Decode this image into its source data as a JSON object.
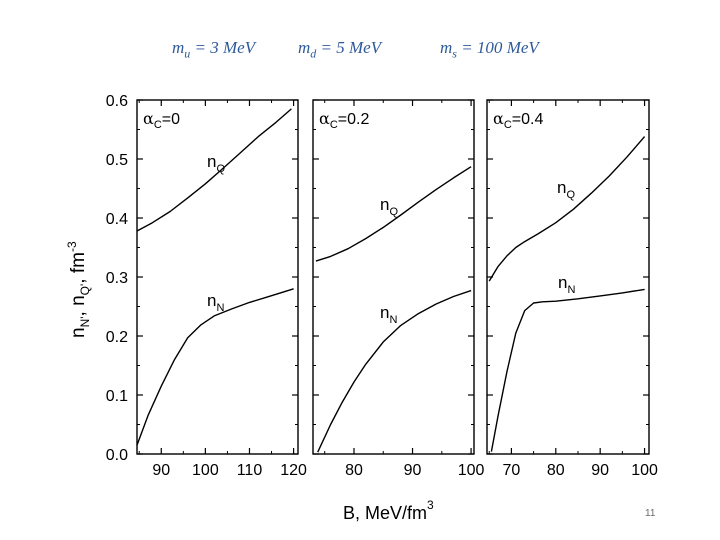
{
  "header": {
    "mu": {
      "sym": "m",
      "sub": "u",
      "rel": " = 3 ",
      "unit": "MeV"
    },
    "md": {
      "sym": "m",
      "sub": "d",
      "rel": " = 5 ",
      "unit": "MeV"
    },
    "ms": {
      "sym": "m",
      "sub": "s",
      "rel": " = 100 ",
      "unit": "MeV"
    }
  },
  "slide_number": "11",
  "chart_data": {
    "type": "line",
    "ylabel": {
      "n1": "n",
      "n1_sub": "N'",
      "n2": " n",
      "n2_sub": "Q'",
      "unit": "fm",
      "unit_sup": "-3"
    },
    "xlabel": {
      "text": "B,  MeV/fm",
      "sup": "3"
    },
    "ylim": [
      0.0,
      0.6
    ],
    "yticks": [
      "0.0",
      "0.1",
      "0.2",
      "0.3",
      "0.4",
      "0.5",
      "0.6"
    ],
    "ytick_values": [
      0.0,
      0.1,
      0.2,
      0.3,
      0.4,
      0.5,
      0.6
    ],
    "panels": [
      {
        "alpha_label": {
          "a": "α",
          "sub": "C",
          "rest": "=0"
        },
        "xlim": [
          84.5,
          121
        ],
        "xticks": [
          90,
          100,
          110,
          120
        ],
        "series": [
          {
            "name": "nQ",
            "label": {
              "main": "n",
              "sub": "Q"
            },
            "x": [
              84.5,
              88,
              92,
              96,
              100,
              104,
              108,
              112,
              116,
              119.5
            ],
            "y": [
              0.378,
              0.392,
              0.411,
              0.434,
              0.458,
              0.484,
              0.511,
              0.538,
              0.562,
              0.585
            ]
          },
          {
            "name": "nN",
            "label": {
              "main": "n",
              "sub": "N"
            },
            "x": [
              84.5,
              87,
              90,
              93,
              96,
              99,
              102,
              106,
              110,
              114,
              117,
              120
            ],
            "y": [
              0.015,
              0.065,
              0.115,
              0.16,
              0.197,
              0.219,
              0.234,
              0.246,
              0.257,
              0.266,
              0.273,
              0.28
            ]
          }
        ]
      },
      {
        "alpha_label": {
          "a": "α",
          "sub": "C",
          "rest": "=0.2"
        },
        "xlim": [
          73,
          100.5
        ],
        "xticks": [
          80,
          90,
          100
        ],
        "series": [
          {
            "name": "nQ",
            "label": {
              "main": "n",
              "sub": "Q"
            },
            "x": [
              73.5,
              76,
              79,
              82,
              85,
              88,
              91,
              94,
              97,
              100
            ],
            "y": [
              0.327,
              0.335,
              0.348,
              0.365,
              0.384,
              0.405,
              0.427,
              0.448,
              0.468,
              0.487
            ]
          },
          {
            "name": "nN",
            "label": {
              "main": "n",
              "sub": "N"
            },
            "x": [
              73.8,
              76,
              78,
              80,
              82,
              85,
              88,
              91,
              94,
              97,
              100
            ],
            "y": [
              0.003,
              0.05,
              0.088,
              0.122,
              0.152,
              0.19,
              0.218,
              0.238,
              0.254,
              0.267,
              0.277
            ]
          }
        ]
      },
      {
        "alpha_label": {
          "a": "α",
          "sub": "C",
          "rest": "=0.4"
        },
        "xlim": [
          64.5,
          101
        ],
        "xticks": [
          70,
          80,
          90,
          100
        ],
        "series": [
          {
            "name": "nQ",
            "label": {
              "main": "n",
              "sub": "Q"
            },
            "x": [
              65,
              67,
              69,
              71,
              73,
              76,
              80,
              84,
              88,
              92,
              96,
              100
            ],
            "y": [
              0.293,
              0.318,
              0.336,
              0.35,
              0.36,
              0.373,
              0.392,
              0.415,
              0.442,
              0.471,
              0.503,
              0.538
            ]
          },
          {
            "name": "nN",
            "label": {
              "main": "n",
              "sub": "N"
            },
            "x": [
              65.5,
              67,
              69,
              71,
              73,
              75,
              77,
              80,
              85,
              90,
              95,
              100
            ],
            "y": [
              0.004,
              0.065,
              0.14,
              0.205,
              0.243,
              0.256,
              0.258,
              0.259,
              0.263,
              0.268,
              0.273,
              0.279
            ]
          }
        ]
      }
    ]
  }
}
